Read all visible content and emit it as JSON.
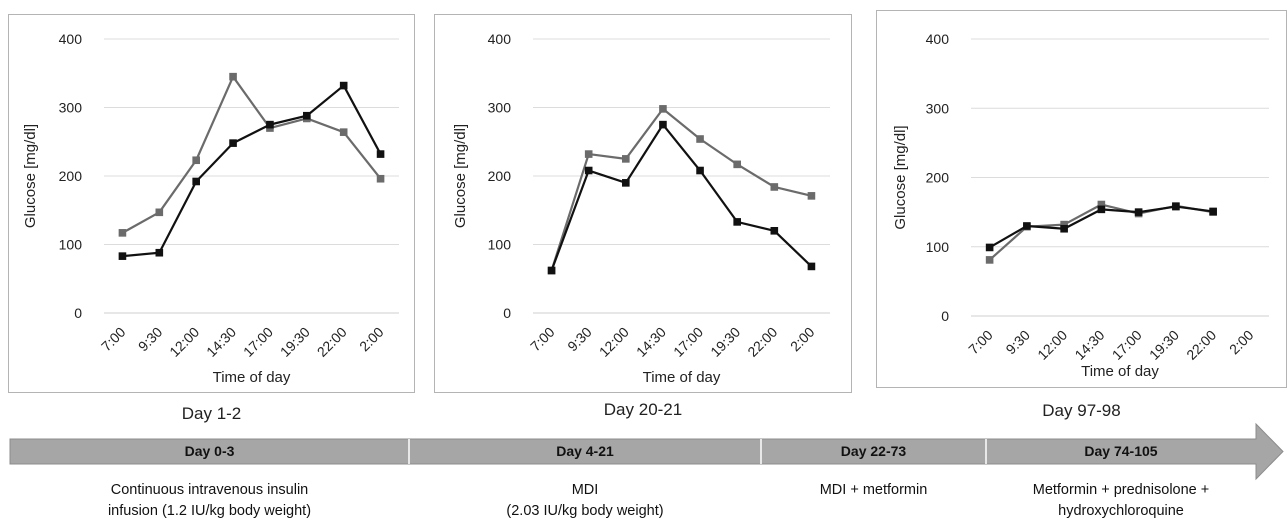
{
  "chart_data": [
    {
      "type": "line",
      "caption": "Day 1-2",
      "xlabel": "Time of day",
      "ylabel": "Glucose [mg/dl]",
      "ylim": [
        0,
        400
      ],
      "yticks": [
        0,
        100,
        200,
        300,
        400
      ],
      "grid": true,
      "categories": [
        "7:00",
        "9:30",
        "12:00",
        "14:30",
        "17:00",
        "19:30",
        "22:00",
        "2:00"
      ],
      "series": [
        {
          "color": "#111111",
          "values": [
            83,
            88,
            192,
            248,
            275,
            288,
            332,
            232
          ]
        },
        {
          "color": "#6b6b6b",
          "values": [
            117,
            147,
            223,
            345,
            270,
            284,
            264,
            196
          ]
        }
      ]
    },
    {
      "type": "line",
      "caption": "Day 20-21",
      "xlabel": "Time of day",
      "ylabel": "Glucose [mg/dl]",
      "ylim": [
        0,
        400
      ],
      "yticks": [
        0,
        100,
        200,
        300,
        400
      ],
      "grid": true,
      "categories": [
        "7:00",
        "9:30",
        "12:00",
        "14:30",
        "17:00",
        "19:30",
        "22:00",
        "2:00"
      ],
      "series": [
        {
          "color": "#111111",
          "values": [
            62,
            208,
            190,
            275,
            208,
            133,
            120,
            68
          ]
        },
        {
          "color": "#6b6b6b",
          "values": [
            62,
            232,
            225,
            298,
            254,
            217,
            184,
            171
          ]
        }
      ]
    },
    {
      "type": "line",
      "caption": "Day 97-98",
      "xlabel": "Time of day",
      "ylabel": "Glucose [mg/dl]",
      "ylim": [
        0,
        400
      ],
      "yticks": [
        0,
        100,
        200,
        300,
        400
      ],
      "grid": true,
      "categories": [
        "7:00",
        "9:30",
        "12:00",
        "14:30",
        "17:00",
        "19:30",
        "22:00",
        "2:00"
      ],
      "series": [
        {
          "color": "#111111",
          "values": [
            99,
            130,
            126,
            154,
            150,
            158,
            151,
            null
          ]
        },
        {
          "color": "#6b6b6b",
          "values": [
            81,
            129,
            132,
            161,
            148,
            159,
            150,
            null
          ]
        }
      ]
    }
  ],
  "timeline": {
    "bar_color": "#a6a6a6",
    "phases": [
      {
        "label": "Day 0-3",
        "description": [
          "Continuous intravenous insulin",
          "infusion  (1.2 IU/kg body weight)"
        ]
      },
      {
        "label": "Day 4-21",
        "description": [
          "MDI",
          "(2.03 IU/kg body weight)"
        ]
      },
      {
        "label": "Day 22-73",
        "description": [
          "MDI + metformin"
        ]
      },
      {
        "label": "Day 74-105",
        "description": [
          "Metformin + prednisolone +",
          "hydroxychloroquine"
        ]
      }
    ]
  }
}
